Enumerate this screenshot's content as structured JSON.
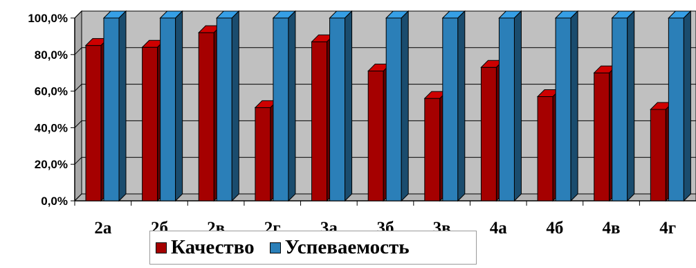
{
  "chart_data": {
    "type": "bar",
    "title": "",
    "xlabel": "",
    "ylabel": "",
    "categories": [
      "2а",
      "2б",
      "2в",
      "2г",
      "3а",
      "3б",
      "3в",
      "4а",
      "4б",
      "4в",
      "4г"
    ],
    "series": [
      {
        "name": "Качество",
        "color": "#a50000",
        "values": [
          85,
          84,
          92,
          51,
          87,
          71,
          56,
          73,
          57,
          70,
          50
        ]
      },
      {
        "name": "Успеваемость",
        "color": "#2b7fb8",
        "values": [
          100,
          100,
          100,
          100,
          100,
          100,
          100,
          100,
          100,
          100,
          100
        ]
      }
    ],
    "ylim": [
      0,
      100
    ],
    "yticks": [
      "0,0%",
      "20,0%",
      "40,0%",
      "60,0%",
      "80,0%",
      "100,0%"
    ],
    "grid": true,
    "plot_background": "#c0c0c0",
    "legend_position": "bottom"
  },
  "legend": {
    "items": [
      {
        "label": "Качество",
        "color": "#a50000"
      },
      {
        "label": "Успеваемость",
        "color": "#2b7fb8"
      }
    ]
  }
}
